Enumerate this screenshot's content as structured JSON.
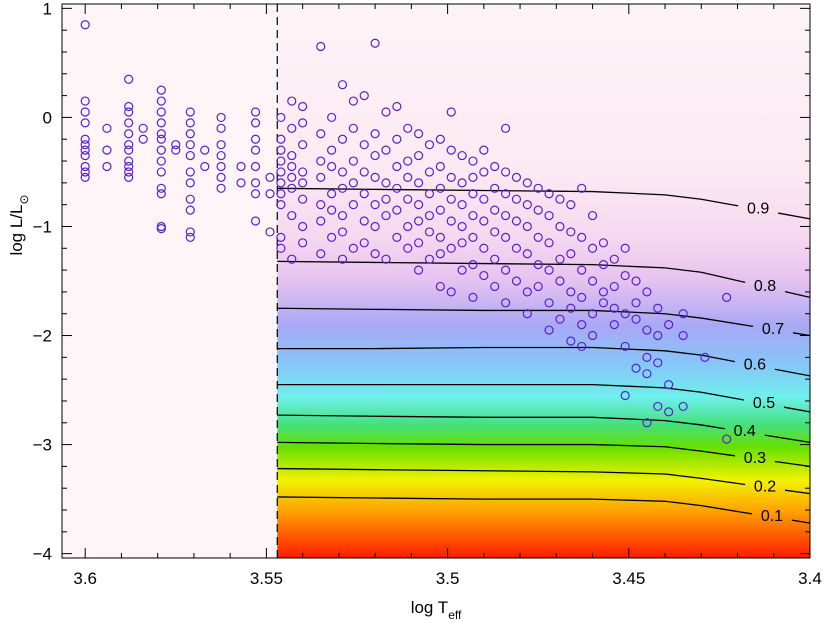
{
  "chart_data": {
    "type": "scatter",
    "x_label": {
      "text": "log T",
      "sub": "eff"
    },
    "y_label": {
      "text": "log L/L",
      "sub": "⊙"
    },
    "xlim": [
      3.6064,
      3.4
    ],
    "ylim": [
      -4.04,
      1.04
    ],
    "xticks": [
      3.6,
      3.55,
      3.5,
      3.45,
      3.4
    ],
    "yticks": [
      1,
      0,
      {
        "value": -1,
        "label": "−1"
      },
      {
        "value": -2,
        "label": "−2"
      },
      {
        "value": -3,
        "label": "−3"
      },
      {
        "value": -4,
        "label": "−4"
      }
    ],
    "xminorticks": [
      3.59,
      3.58,
      3.57,
      3.56,
      3.54,
      3.53,
      3.52,
      3.51,
      3.49,
      3.48,
      3.47,
      3.46,
      3.44,
      3.43,
      3.42,
      3.41
    ],
    "yminorticks": [
      0.8,
      0.6,
      0.4,
      0.2,
      -0.2,
      -0.4,
      -0.6,
      -0.8,
      -1.2,
      -1.4,
      -1.6,
      -1.8,
      -2.2,
      -2.4,
      -2.6,
      -2.8,
      -3.2,
      -3.4,
      -3.6,
      -3.8
    ],
    "boundary_x": 3.547,
    "series": [
      {
        "color": "#5a1fd2",
        "x": [
          3.6,
          3.6,
          3.6,
          3.6,
          3.6,
          3.6,
          3.6,
          3.6,
          3.6,
          3.6,
          3.6,
          3.594,
          3.594,
          3.594,
          3.588,
          3.588,
          3.588,
          3.588,
          3.588,
          3.588,
          3.588,
          3.588,
          3.588,
          3.588,
          3.588,
          3.584,
          3.584,
          3.579,
          3.579,
          3.579,
          3.579,
          3.579,
          3.579,
          3.579,
          3.579,
          3.579,
          3.579,
          3.579,
          3.579,
          3.579,
          3.575,
          3.575,
          3.571,
          3.571,
          3.571,
          3.571,
          3.571,
          3.571,
          3.571,
          3.571,
          3.571,
          3.571,
          3.571,
          3.567,
          3.567,
          3.5625,
          3.5625,
          3.5625,
          3.5625,
          3.5625,
          3.5625,
          3.5625,
          3.557,
          3.557,
          3.553,
          3.553,
          3.553,
          3.553,
          3.553,
          3.553,
          3.553,
          3.553,
          3.549,
          3.549,
          3.549,
          3.546,
          3.546,
          3.546,
          3.546,
          3.546,
          3.546,
          3.546,
          3.546,
          3.546,
          3.546,
          3.543,
          3.543,
          3.543,
          3.543,
          3.543,
          3.543,
          3.543,
          3.543,
          3.54,
          3.54,
          3.54,
          3.54,
          3.54,
          3.54,
          3.54,
          3.54,
          3.535,
          3.535,
          3.535,
          3.535,
          3.535,
          3.535,
          3.535,
          3.532,
          3.532,
          3.532,
          3.532,
          3.532,
          3.532,
          3.529,
          3.529,
          3.529,
          3.529,
          3.529,
          3.529,
          3.529,
          3.526,
          3.526,
          3.526,
          3.526,
          3.526,
          3.526,
          3.523,
          3.523,
          3.523,
          3.523,
          3.523,
          3.523,
          3.52,
          3.52,
          3.52,
          3.52,
          3.52,
          3.52,
          3.52,
          3.517,
          3.517,
          3.517,
          3.517,
          3.517,
          3.517,
          3.514,
          3.514,
          3.514,
          3.514,
          3.514,
          3.514,
          3.511,
          3.511,
          3.511,
          3.511,
          3.511,
          3.511,
          3.508,
          3.508,
          3.508,
          3.508,
          3.508,
          3.508,
          3.508,
          3.505,
          3.505,
          3.505,
          3.505,
          3.505,
          3.505,
          3.502,
          3.502,
          3.502,
          3.502,
          3.502,
          3.502,
          3.502,
          3.499,
          3.499,
          3.499,
          3.499,
          3.499,
          3.499,
          3.499,
          3.496,
          3.496,
          3.496,
          3.496,
          3.496,
          3.496,
          3.493,
          3.493,
          3.493,
          3.493,
          3.493,
          3.493,
          3.493,
          3.49,
          3.49,
          3.49,
          3.49,
          3.49,
          3.49,
          3.487,
          3.487,
          3.487,
          3.487,
          3.487,
          3.487,
          3.484,
          3.484,
          3.484,
          3.484,
          3.484,
          3.484,
          3.484,
          3.481,
          3.481,
          3.481,
          3.481,
          3.481,
          3.478,
          3.478,
          3.478,
          3.478,
          3.478,
          3.478,
          3.475,
          3.475,
          3.475,
          3.475,
          3.475,
          3.472,
          3.472,
          3.472,
          3.472,
          3.472,
          3.472,
          3.469,
          3.469,
          3.469,
          3.469,
          3.469,
          3.466,
          3.466,
          3.466,
          3.466,
          3.466,
          3.466,
          3.463,
          3.463,
          3.463,
          3.463,
          3.463,
          3.463,
          3.46,
          3.46,
          3.46,
          3.46,
          3.46,
          3.457,
          3.457,
          3.457,
          3.457,
          3.454,
          3.454,
          3.454,
          3.454,
          3.451,
          3.451,
          3.451,
          3.451,
          3.451,
          3.448,
          3.448,
          3.448,
          3.448,
          3.445,
          3.445,
          3.445,
          3.445,
          3.445,
          3.442,
          3.442,
          3.442,
          3.442,
          3.439,
          3.439,
          3.439,
          3.435,
          3.435,
          3.435,
          3.429,
          3.423,
          3.423
        ],
        "values": [
          0.85,
          0.15,
          0.05,
          -0.05,
          -0.2,
          -0.25,
          -0.3,
          -0.35,
          -0.45,
          -0.5,
          -0.55,
          -0.1,
          -0.3,
          -0.45,
          0.35,
          0.1,
          0.05,
          -0.05,
          -0.15,
          -0.25,
          -0.3,
          -0.4,
          -0.45,
          -0.5,
          -0.55,
          -0.1,
          -0.2,
          0.25,
          0.15,
          0.05,
          -0.05,
          -0.15,
          -0.2,
          -0.3,
          -0.4,
          -0.5,
          -0.65,
          -0.7,
          -1.02,
          -1.0,
          -0.25,
          -0.3,
          0.05,
          -0.05,
          -0.15,
          -0.25,
          -0.35,
          -0.5,
          -0.6,
          -0.75,
          -0.85,
          -1.05,
          -1.1,
          -0.3,
          -0.45,
          0.0,
          -0.1,
          -0.25,
          -0.35,
          -0.45,
          -0.55,
          -0.65,
          -0.45,
          -0.6,
          0.05,
          -0.05,
          -0.2,
          -0.3,
          -0.45,
          -0.6,
          -0.7,
          -0.95,
          -0.55,
          -0.7,
          -1.05,
          0.0,
          -0.2,
          -0.3,
          -0.4,
          -0.5,
          -0.6,
          -0.7,
          -0.8,
          -1.1,
          -1.2,
          0.15,
          -0.1,
          -0.35,
          -0.45,
          -0.55,
          -0.65,
          -0.9,
          -1.3,
          0.1,
          -0.05,
          -0.25,
          -0.5,
          -0.6,
          -0.75,
          -1.0,
          -1.15,
          0.65,
          -0.15,
          -0.4,
          -0.55,
          -0.8,
          -0.95,
          -1.25,
          0.0,
          -0.3,
          -0.45,
          -0.7,
          -0.85,
          -1.1,
          0.3,
          -0.2,
          -0.5,
          -0.65,
          -0.9,
          -1.05,
          -1.3,
          0.15,
          -0.1,
          -0.4,
          -0.6,
          -0.8,
          -1.2,
          0.2,
          -0.25,
          -0.5,
          -0.7,
          -0.95,
          -1.15,
          0.68,
          -0.15,
          -0.35,
          -0.55,
          -0.8,
          -1.0,
          -1.25,
          0.05,
          -0.3,
          -0.6,
          -0.75,
          -0.9,
          -1.3,
          0.1,
          -0.2,
          -0.45,
          -0.65,
          -0.85,
          -1.1,
          -0.1,
          -0.4,
          -0.55,
          -0.75,
          -1.0,
          -1.2,
          -0.15,
          -0.35,
          -0.6,
          -0.8,
          -0.95,
          -1.15,
          -1.4,
          -0.25,
          -0.5,
          -0.7,
          -0.9,
          -1.05,
          -1.3,
          -0.2,
          -0.45,
          -0.65,
          -0.85,
          -1.1,
          -1.25,
          -1.55,
          0.05,
          -0.3,
          -0.55,
          -0.75,
          -0.95,
          -1.2,
          -1.6,
          -0.35,
          -0.6,
          -0.8,
          -1.0,
          -1.15,
          -1.4,
          -0.4,
          -0.55,
          -0.7,
          -0.9,
          -1.1,
          -1.35,
          -1.65,
          -0.3,
          -0.5,
          -0.75,
          -0.95,
          -1.2,
          -1.45,
          -0.45,
          -0.65,
          -0.85,
          -1.05,
          -1.3,
          -1.55,
          -0.1,
          -0.5,
          -0.7,
          -0.9,
          -1.1,
          -1.4,
          -1.7,
          -0.55,
          -0.75,
          -0.95,
          -1.2,
          -1.5,
          -0.6,
          -0.8,
          -1.0,
          -1.25,
          -1.6,
          -1.8,
          -0.65,
          -0.85,
          -1.1,
          -1.35,
          -1.55,
          -0.7,
          -0.9,
          -1.15,
          -1.4,
          -1.7,
          -1.95,
          -0.75,
          -1.0,
          -1.3,
          -1.5,
          -1.85,
          -0.8,
          -1.05,
          -1.25,
          -1.6,
          -1.75,
          -2.05,
          -0.65,
          -1.1,
          -1.4,
          -1.65,
          -1.9,
          -2.1,
          -0.9,
          -1.2,
          -1.5,
          -1.8,
          -2.0,
          -1.15,
          -1.35,
          -1.6,
          -1.7,
          -1.3,
          -1.55,
          -1.75,
          -1.9,
          -1.2,
          -1.45,
          -1.8,
          -2.1,
          -2.55,
          -1.5,
          -1.7,
          -1.85,
          -2.3,
          -1.6,
          -1.95,
          -2.2,
          -2.35,
          -2.8,
          -1.75,
          -2.0,
          -2.25,
          -2.65,
          -1.9,
          -2.45,
          -2.7,
          -1.8,
          -2.0,
          -2.65,
          -2.2,
          -1.65,
          -2.95
        ]
      }
    ],
    "contour_color": "#000000",
    "contours": [
      {
        "label": "0.9",
        "x": [
          3.547,
          3.52,
          3.49,
          3.46,
          3.44,
          3.43,
          3.4198,
          3.4143,
          3.4088,
          3.4
        ],
        "values": [
          -0.65,
          -0.66,
          -0.67,
          -0.68,
          -0.71,
          -0.75,
          -0.811,
          null,
          -0.877,
          -0.93
        ]
      },
      {
        "label": "0.8",
        "x": [
          3.547,
          3.52,
          3.49,
          3.46,
          3.44,
          3.43,
          3.4179,
          3.4124,
          3.4069,
          3.4
        ],
        "values": [
          -1.32,
          -1.33,
          -1.34,
          -1.35,
          -1.38,
          -1.42,
          -1.513,
          null,
          -1.597,
          -1.65
        ]
      },
      {
        "label": "0.7",
        "x": [
          3.547,
          3.52,
          3.49,
          3.46,
          3.44,
          3.43,
          3.4157,
          3.4102,
          3.4047,
          3.4
        ],
        "values": [
          -1.75,
          -1.76,
          -1.77,
          -1.77,
          -1.8,
          -1.84,
          -1.916,
          null,
          -1.975,
          -2.0
        ]
      },
      {
        "label": "0.6",
        "x": [
          3.547,
          3.52,
          3.49,
          3.46,
          3.44,
          3.43,
          3.4207,
          3.4152,
          3.4097,
          3.4
        ],
        "values": [
          -2.12,
          -2.12,
          -2.11,
          -2.11,
          -2.14,
          -2.18,
          -2.239,
          null,
          -2.309,
          -2.37
        ]
      },
      {
        "label": "0.5",
        "x": [
          3.547,
          3.52,
          3.49,
          3.46,
          3.44,
          3.43,
          3.4182,
          3.4127,
          3.4072,
          3.4
        ],
        "values": [
          -2.45,
          -2.45,
          -2.45,
          -2.45,
          -2.48,
          -2.52,
          -2.591,
          null,
          -2.657,
          -2.7
        ]
      },
      {
        "label": "0.4",
        "x": [
          3.547,
          3.52,
          3.49,
          3.46,
          3.44,
          3.43,
          3.4235,
          3.418,
          3.4125,
          3.4
        ],
        "values": [
          -2.73,
          -2.74,
          -2.75,
          -2.75,
          -2.78,
          -2.82,
          -2.855,
          null,
          -2.913,
          -2.98
        ]
      },
      {
        "label": "0.3",
        "x": [
          3.547,
          3.52,
          3.49,
          3.46,
          3.44,
          3.43,
          3.4207,
          3.4152,
          3.4097,
          3.4
        ],
        "values": [
          -2.98,
          -2.99,
          -3.0,
          -3.0,
          -3.02,
          -3.06,
          -3.103,
          null,
          -3.155,
          -3.2
        ]
      },
      {
        "label": "0.2",
        "x": [
          3.547,
          3.52,
          3.49,
          3.46,
          3.44,
          3.43,
          3.4179,
          3.4124,
          3.4069,
          3.4
        ],
        "values": [
          -3.22,
          -3.23,
          -3.24,
          -3.25,
          -3.27,
          -3.31,
          -3.366,
          null,
          -3.418,
          -3.45
        ]
      },
      {
        "label": "0.1",
        "x": [
          3.547,
          3.52,
          3.49,
          3.46,
          3.44,
          3.43,
          3.416,
          3.4105,
          3.405,
          3.4
        ],
        "values": [
          -3.48,
          -3.49,
          -3.5,
          -3.5,
          -3.52,
          -3.56,
          -3.635,
          null,
          -3.693,
          -3.72
        ]
      }
    ]
  }
}
